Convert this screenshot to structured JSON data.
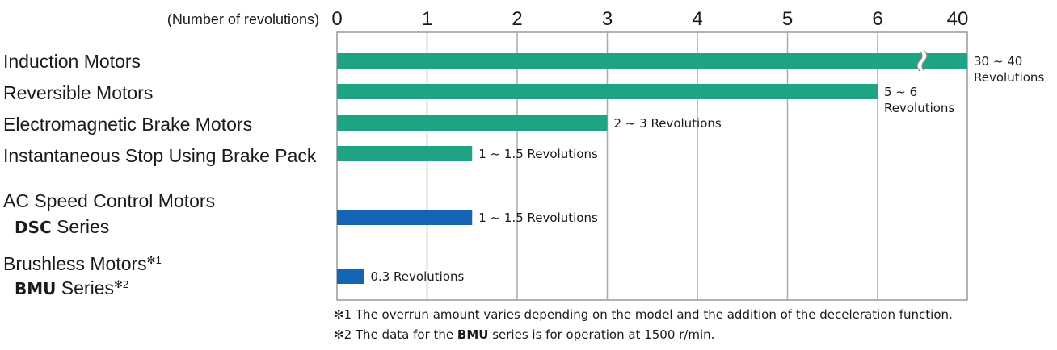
{
  "chart_data": {
    "type": "bar",
    "orientation": "horizontal",
    "axis_label": "(Number of revolutions)",
    "x_ticks": [
      "0",
      "1",
      "2",
      "3",
      "4",
      "5",
      "6",
      "40"
    ],
    "axis_break": "between 6 and 40",
    "grid": true,
    "categories": [
      {
        "label": "Induction Motors",
        "value_range": [
          30,
          40
        ],
        "data_label": [
          "30 ~ 40",
          "Revolutions"
        ],
        "color": "#1fa385"
      },
      {
        "label": "Reversible Motors",
        "value_range": [
          5,
          6
        ],
        "data_label": [
          "5 ~ 6",
          "Revolutions"
        ],
        "color": "#1fa385"
      },
      {
        "label": "Electromagnetic Brake Motors",
        "value_range": [
          2,
          3
        ],
        "data_label": [
          "2 ~ 3 Revolutions"
        ],
        "color": "#1fa385"
      },
      {
        "label": "Instantaneous Stop Using Brake Pack",
        "value_range": [
          1,
          1.5
        ],
        "data_label": [
          "1 ~ 1.5 Revolutions"
        ],
        "color": "#1fa385"
      },
      {
        "label": "AC Speed Control Motors",
        "sub_bold": "DSC",
        "sub_text": " Series",
        "value_range": [
          1,
          1.5
        ],
        "data_label": [
          "1 ~ 1.5 Revolutions"
        ],
        "color": "#1565b5"
      },
      {
        "label": "Brushless Motors",
        "label_mark": "✻",
        "label_sup": "1",
        "sub_bold": "BMU",
        "sub_text": " Series",
        "sub_mark": "✻",
        "sub_sup": "2",
        "value_range": [
          0.3,
          0.3
        ],
        "data_label": [
          "0.3 Revolutions"
        ],
        "color": "#1565b5"
      }
    ]
  },
  "notes": {
    "note1_mark": "✻1",
    "note1_text": " The overrun amount varies depending on the model and the addition of the deceleration function.",
    "note2_mark": "✻2",
    "note2_pre": " The data for the ",
    "note2_bold": "BMU",
    "note2_post": " series is for operation at 1500 r/min."
  }
}
